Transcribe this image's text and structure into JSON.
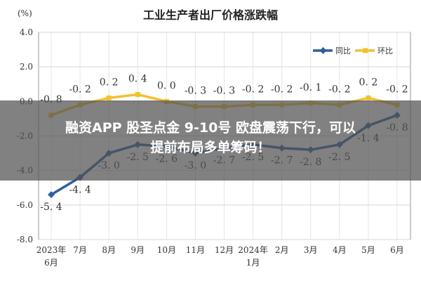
{
  "chart_data": {
    "type": "line",
    "title": "工业生产者出厂价格涨跌幅",
    "ylabel": "(%)",
    "ylim": [
      -8.0,
      4.0
    ],
    "yticks": [
      "4.0",
      "2.0",
      "0.0",
      "-2.0",
      "-4.0",
      "-6.0",
      "-8.0"
    ],
    "ytick_values": [
      4,
      2,
      0,
      -2,
      -4,
      -6,
      -8
    ],
    "categories": [
      [
        "2023年",
        "6月"
      ],
      [
        "7月"
      ],
      [
        "8月"
      ],
      [
        "9月"
      ],
      [
        "10月"
      ],
      [
        "11月"
      ],
      [
        "12月"
      ],
      [
        "2024年",
        "1月"
      ],
      [
        "2月"
      ],
      [
        "3月"
      ],
      [
        "4月"
      ],
      [
        "5月"
      ],
      [
        "6月"
      ]
    ],
    "grid": true,
    "legend_position": "top-right",
    "series": [
      {
        "name": "同比",
        "color": "#2e5f9e",
        "values": [
          -5.4,
          -4.4,
          -3.0,
          -2.5,
          -2.6,
          -3.0,
          -2.7,
          -2.5,
          -2.7,
          -2.8,
          -2.5,
          -1.4,
          -0.8
        ],
        "labels": [
          "-5.4",
          "-4.4",
          "-3.0",
          "-2.5",
          "-2.6",
          "-3.0",
          "-2.7",
          "-2.5",
          "-2.7",
          "-2.8",
          "-2.5",
          "-1.4",
          "-0.8"
        ]
      },
      {
        "name": "环比",
        "color": "#f2c12e",
        "values": [
          -0.8,
          -0.2,
          0.2,
          0.4,
          0.0,
          -0.3,
          -0.3,
          -0.2,
          -0.2,
          -0.1,
          -0.2,
          0.2,
          -0.2
        ],
        "labels": [
          "-0.8",
          "-0.2",
          "0.2",
          "0.4",
          "0.0",
          "-0.3",
          "-0.3",
          "-0.2",
          "-0.2",
          "-0.1",
          "-0.2",
          "0.2",
          "-0.2"
        ]
      }
    ]
  },
  "overlay": {
    "line1": "融资APP 股圣点金 9-10号 欧盘震荡下行，可以",
    "line2": "提前布局多单筹码！"
  }
}
